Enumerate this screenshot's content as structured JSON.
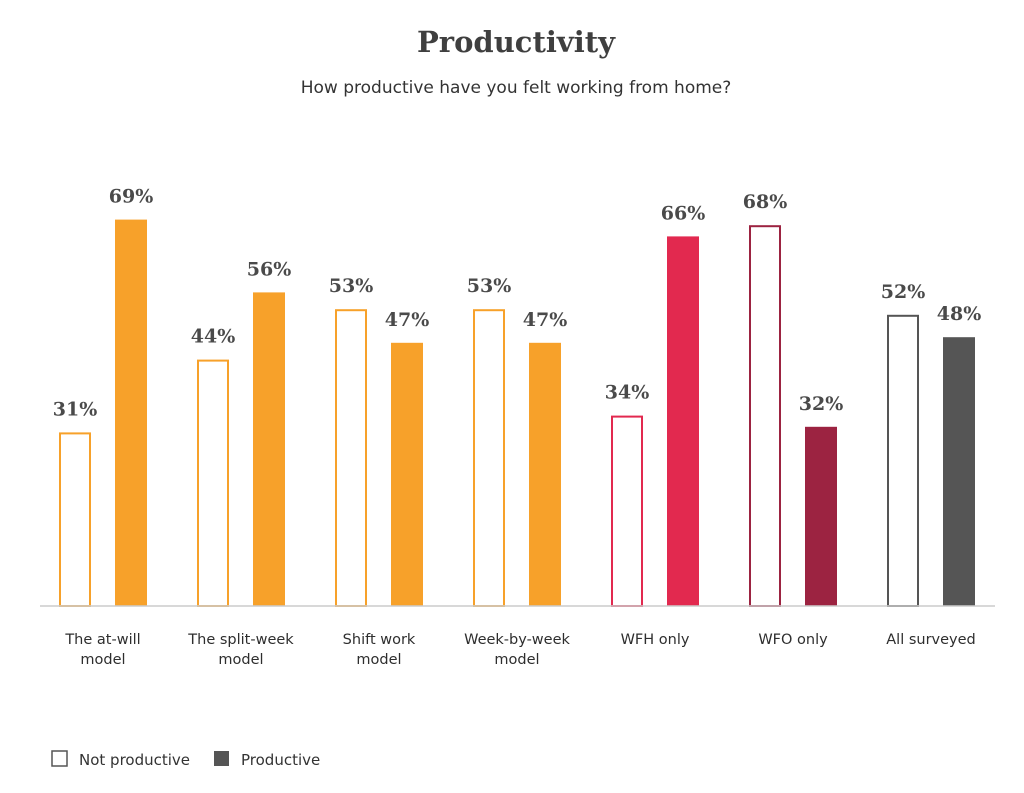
{
  "chart_data": {
    "type": "bar",
    "title": "Productivity",
    "subtitle": "How productive have you felt working from home?",
    "categories": [
      [
        "The at-will",
        "model"
      ],
      [
        "The split-week",
        "model"
      ],
      [
        "Shift work",
        "model"
      ],
      [
        "Week-by-week",
        "model"
      ],
      [
        "WFH only"
      ],
      [
        "WFO only"
      ],
      [
        "All surveyed"
      ]
    ],
    "series": [
      {
        "name": "Not productive",
        "values": [
          31,
          44,
          53,
          53,
          34,
          68,
          52
        ],
        "style": "outline"
      },
      {
        "name": "Productive",
        "values": [
          69,
          56,
          47,
          47,
          66,
          32,
          48
        ],
        "style": "filled"
      }
    ],
    "value_suffix": "%",
    "category_colors": [
      "#f7a12a",
      "#f7a12a",
      "#f7a12a",
      "#f7a12a",
      "#e2294f",
      "#9c2341",
      "#555555"
    ],
    "legend_swatch_colors": {
      "outline": "#555555",
      "filled": "#555555"
    },
    "baseline_color": "#cccccc",
    "ylim": [
      0,
      70
    ],
    "legend_position": "bottom-left",
    "grid": false
  }
}
